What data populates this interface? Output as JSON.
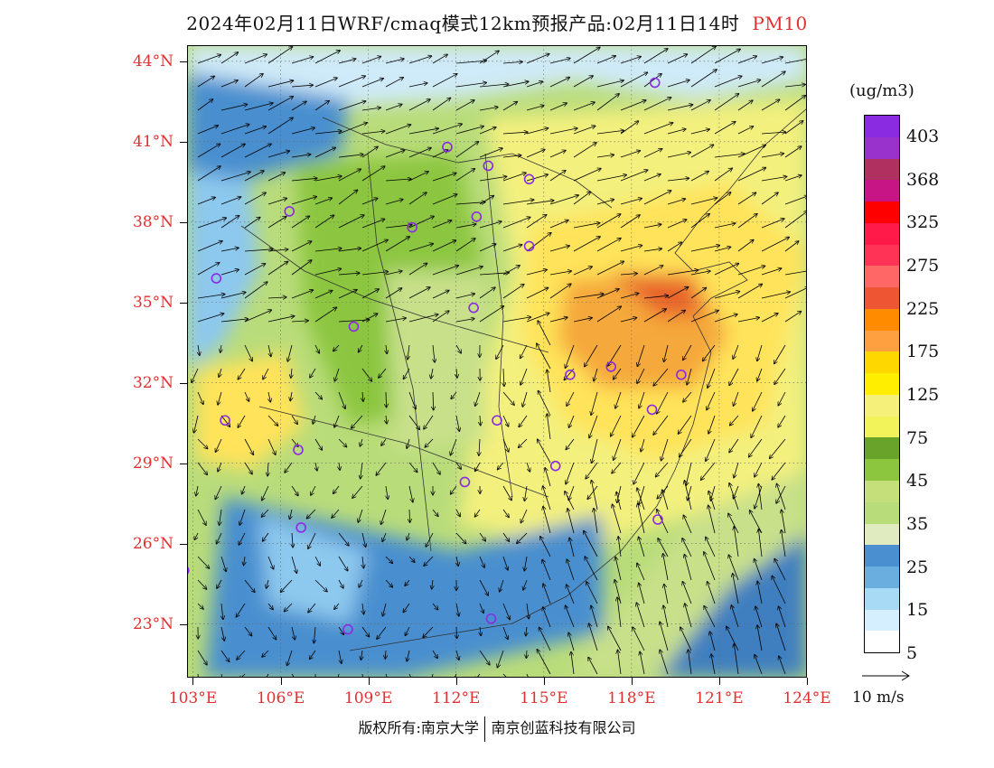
{
  "title": {
    "main": "2024年02月11日WRF/cmaq模式12km预报产品:02月11日14时",
    "pollutant": "PM10"
  },
  "axes": {
    "lat_labels": [
      "44°N",
      "41°N",
      "38°N",
      "35°N",
      "32°N",
      "29°N",
      "26°N",
      "23°N"
    ],
    "lat_values": [
      44,
      41,
      38,
      35,
      32,
      29,
      26,
      23
    ],
    "lon_labels": [
      "103°E",
      "106°E",
      "109°E",
      "112°E",
      "115°E",
      "118°E",
      "121°E",
      "124°E"
    ],
    "lon_values": [
      103,
      106,
      109,
      112,
      115,
      118,
      121,
      124
    ],
    "lat_range": [
      21.0,
      44.6
    ],
    "lon_range": [
      102.8,
      124.0
    ]
  },
  "legend": {
    "unit": "(ug/m3)",
    "colors": [
      "#8a2be2",
      "#9932cc",
      "#b03060",
      "#c71585",
      "#ff0000",
      "#ff1a4a",
      "#ff3355",
      "#ff6666",
      "#ee5533",
      "#ff8c00",
      "#ffa040",
      "#ffd700",
      "#ffee00",
      "#f5f07a",
      "#f2f25a",
      "#6aa32a",
      "#8cc63f",
      "#c5e07a",
      "#b9dc7a",
      "#e0ecc0",
      "#4a8fcf",
      "#6aaee0",
      "#a8daf5",
      "#d6efff",
      "#ffffff"
    ],
    "labels": [
      "403",
      "368",
      "325",
      "275",
      "225",
      "175",
      "125",
      "75",
      "45",
      "35",
      "25",
      "15",
      "5"
    ],
    "ref_arrow_label": "10 m/s"
  },
  "overlay": {
    "colors": {
      "high": "#e8632c",
      "orange": "#f5a83a",
      "yellow": "#ffe35a",
      "paleyellow": "#f3f07e",
      "green": "#8cc63f",
      "lightgreen": "#c8e08a",
      "blue": "#4a8fcf",
      "lightblue": "#8dc8ee",
      "paleblue": "#cfeaf8",
      "sea": "#3f7fbf"
    }
  },
  "cities": [
    {
      "lon": 118.8,
      "lat": 43.2
    },
    {
      "lon": 111.7,
      "lat": 40.8
    },
    {
      "lon": 113.1,
      "lat": 40.1
    },
    {
      "lon": 114.5,
      "lat": 39.6
    },
    {
      "lon": 106.3,
      "lat": 38.4
    },
    {
      "lon": 110.5,
      "lat": 37.8
    },
    {
      "lon": 112.7,
      "lat": 38.2
    },
    {
      "lon": 114.5,
      "lat": 37.1
    },
    {
      "lon": 103.8,
      "lat": 35.9
    },
    {
      "lon": 112.6,
      "lat": 34.8
    },
    {
      "lon": 108.5,
      "lat": 34.1
    },
    {
      "lon": 115.9,
      "lat": 32.3
    },
    {
      "lon": 117.3,
      "lat": 32.6
    },
    {
      "lon": 119.7,
      "lat": 32.3
    },
    {
      "lon": 118.7,
      "lat": 31.0
    },
    {
      "lon": 113.4,
      "lat": 30.6
    },
    {
      "lon": 104.1,
      "lat": 30.6
    },
    {
      "lon": 106.6,
      "lat": 29.5
    },
    {
      "lon": 112.3,
      "lat": 28.3
    },
    {
      "lon": 115.4,
      "lat": 28.9
    },
    {
      "lon": 106.7,
      "lat": 26.6
    },
    {
      "lon": 118.9,
      "lat": 26.9
    },
    {
      "lon": 102.7,
      "lat": 25.0
    },
    {
      "lon": 108.3,
      "lat": 22.8
    },
    {
      "lon": 113.2,
      "lat": 23.2
    }
  ],
  "footer": {
    "left": "版权所有:南京大学",
    "right": "南京创蓝科技有限公司"
  }
}
